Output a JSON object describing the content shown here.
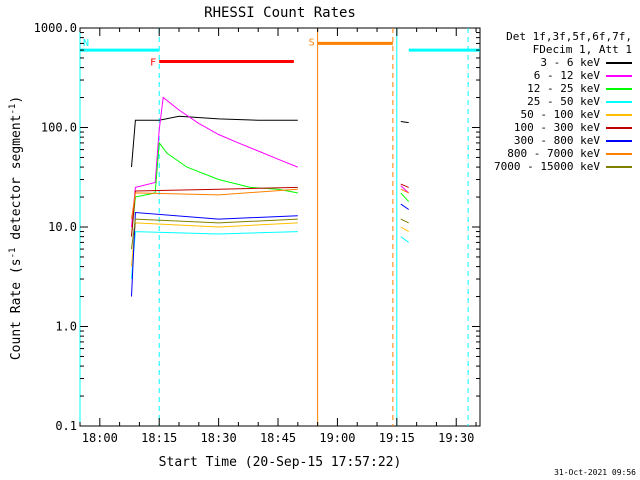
{
  "chart_data": {
    "type": "line",
    "title": "RHESSI Count Rates",
    "xlabel": "Start Time (20-Sep-15 17:57:22)",
    "ylabel": "Count Rate (s^-1 detector segment^-1)",
    "ylabel_main": "Count Rate (s",
    "ylabel_sup1": "-1",
    "ylabel_mid": " detector segment",
    "ylabel_sup2": "-1",
    "ylabel_end": ")",
    "y_scale": "log",
    "ylim": [
      0.1,
      1000
    ],
    "xlim": [
      "17:55",
      "19:36"
    ],
    "x_ticks": [
      "18:00",
      "18:15",
      "18:30",
      "18:45",
      "19:00",
      "19:15",
      "19:30"
    ],
    "y_ticks": [
      "1000.0",
      "100.0",
      "10.0",
      "1.0",
      "0.1"
    ],
    "grid": false,
    "legend_position": "top-right",
    "legend_header": [
      "Det 1f,3f,5f,6f,7f,",
      "FDecim 1, Att 1"
    ],
    "series": [
      {
        "name": "3 - 6 keV",
        "color": "#000000",
        "x": [
          "18:08",
          "18:09",
          "18:15",
          "18:20",
          "18:30",
          "18:40",
          "18:48",
          "18:50",
          "19:16",
          "19:18"
        ],
        "values": [
          40,
          118,
          118,
          130,
          122,
          118,
          118,
          118,
          115,
          112
        ]
      },
      {
        "name": "6 - 12 keV",
        "color": "#ff00ff",
        "x": [
          "18:08",
          "18:09",
          "18:14",
          "18:15",
          "18:16",
          "18:20",
          "18:25",
          "18:30",
          "18:35",
          "18:40",
          "18:45",
          "18:50",
          "19:16",
          "19:18"
        ],
        "values": [
          10,
          25,
          28,
          95,
          200,
          150,
          110,
          85,
          70,
          58,
          48,
          40,
          26,
          22
        ]
      },
      {
        "name": "12 - 25 keV",
        "color": "#00ff00",
        "x": [
          "18:08",
          "18:09",
          "18:14",
          "18:15",
          "18:17",
          "18:22",
          "18:30",
          "18:38",
          "18:45",
          "18:50",
          "19:16",
          "19:18"
        ],
        "values": [
          8,
          20,
          22,
          70,
          55,
          40,
          30,
          25,
          24,
          22,
          22,
          18
        ]
      },
      {
        "name": "25 - 50 keV",
        "color": "#00ffff",
        "x": [
          "18:08",
          "18:09",
          "18:30",
          "18:50",
          "19:16",
          "19:18"
        ],
        "values": [
          3,
          9,
          8.5,
          9,
          8,
          7
        ]
      },
      {
        "name": "50 - 100 keV",
        "color": "#ffbf00",
        "x": [
          "18:08",
          "18:09",
          "18:30",
          "18:50",
          "19:16",
          "19:18"
        ],
        "values": [
          4,
          11,
          10,
          11,
          10,
          9
        ]
      },
      {
        "name": "100 - 300 keV",
        "color": "#c00000",
        "x": [
          "18:08",
          "18:09",
          "18:30",
          "18:50",
          "19:16",
          "19:18"
        ],
        "values": [
          8,
          23,
          24,
          25,
          27,
          25
        ]
      },
      {
        "name": "300 - 800 keV",
        "color": "#0000ff",
        "x": [
          "18:08",
          "18:09",
          "18:30",
          "18:50",
          "19:16",
          "19:18"
        ],
        "values": [
          2,
          14,
          12,
          13,
          17,
          15
        ]
      },
      {
        "name": "800 - 7000 keV",
        "color": "#ff8000",
        "x": [
          "18:08",
          "18:09",
          "18:30",
          "18:50",
          "19:16",
          "19:18"
        ],
        "values": [
          12,
          22,
          21,
          24,
          24,
          22
        ]
      },
      {
        "name": "7000 - 15000 keV",
        "color": "#808000",
        "x": [
          "18:08",
          "18:09",
          "18:30",
          "18:50",
          "19:16",
          "19:18"
        ],
        "values": [
          6,
          12,
          11,
          12,
          12,
          11
        ]
      }
    ],
    "annotations": [
      {
        "label": "N",
        "color": "#00ffff",
        "type": "night",
        "x_start": "17:55",
        "x_end": "18:15",
        "level": 600
      },
      {
        "label": "",
        "color": "#00ffff",
        "type": "night",
        "x_start": "19:18",
        "x_end": "19:36",
        "level": 600
      },
      {
        "label": "F",
        "color": "#ff0000",
        "type": "flare",
        "x_start": "18:15",
        "x_end": "18:49",
        "level": 460
      },
      {
        "label": "S",
        "color": "#ff8000",
        "type": "saa",
        "x_start": "18:55",
        "x_end": "19:14",
        "level": 700
      }
    ],
    "vertical_lines": [
      {
        "x": "17:55",
        "color": "#00ffff",
        "style": "solid"
      },
      {
        "x": "18:15",
        "color": "#00ffff",
        "style": "dashed"
      },
      {
        "x": "18:55",
        "color": "#ff8000",
        "style": "solid"
      },
      {
        "x": "19:14",
        "color": "#ff8000",
        "style": "dashed"
      },
      {
        "x": "19:15",
        "color": "#00ffff",
        "style": "solid"
      },
      {
        "x": "19:33",
        "color": "#00ffff",
        "style": "dashed"
      }
    ],
    "data_gaps": [
      [
        "18:50",
        "19:16"
      ]
    ],
    "timestamp": "31-Oct-2021 09:56"
  }
}
